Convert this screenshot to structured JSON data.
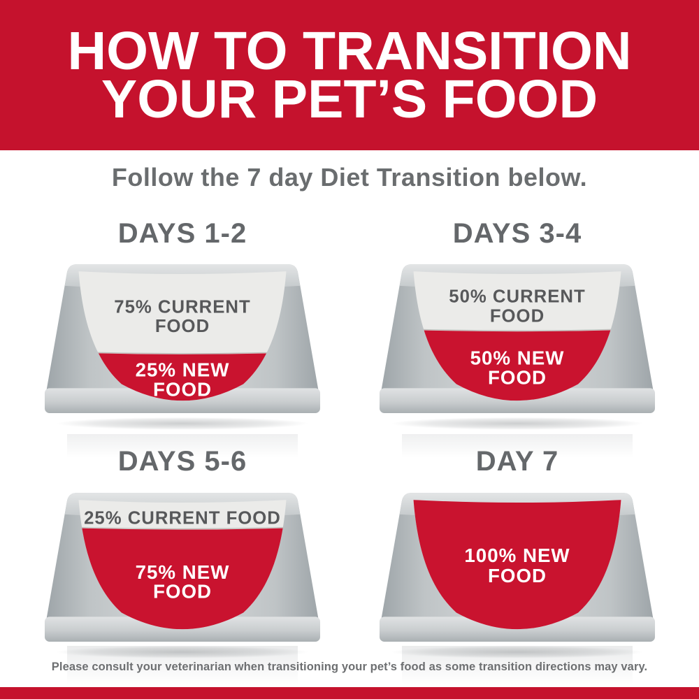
{
  "colors": {
    "brand_red": "#C5122D",
    "food_red": "#C9132F",
    "heading_gray": "#64676A",
    "label_gray": "#57585A",
    "current_food_gray": "#EBEBE9",
    "title_white": "#FFFFFF"
  },
  "header": {
    "title_line1": "HOW TO TRANSITION",
    "title_line2": "YOUR PET’S FOOD"
  },
  "subtitle": "Follow the 7 day Diet Transition below.",
  "bowls": [
    {
      "heading": "DAYS 1-2",
      "current_pct": 75,
      "new_pct": 25,
      "current_line1": "75% CURRENT",
      "current_line2": "FOOD",
      "new_line1": "25% NEW",
      "new_line2": "FOOD"
    },
    {
      "heading": "DAYS 3-4",
      "current_pct": 50,
      "new_pct": 50,
      "current_line1": "50% CURRENT",
      "current_line2": "FOOD",
      "new_line1": "50% NEW",
      "new_line2": "FOOD"
    },
    {
      "heading": "DAYS 5-6",
      "current_pct": 25,
      "new_pct": 75,
      "current_line1": "25% CURRENT FOOD",
      "new_line1": "75% NEW",
      "new_line2": "FOOD"
    },
    {
      "heading": "DAY 7",
      "current_pct": 0,
      "new_pct": 100,
      "new_line1": "100% NEW",
      "new_line2": "FOOD"
    }
  ],
  "footer": {
    "disclaimer": "Please consult your veterinarian when transitioning your pet’s food as some transition directions may vary."
  }
}
